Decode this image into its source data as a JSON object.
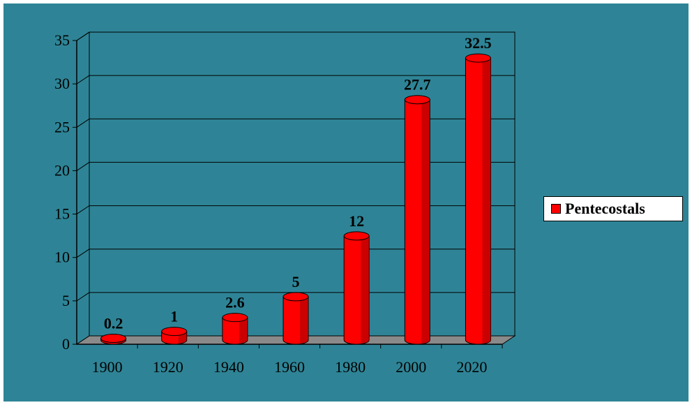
{
  "chart_data": {
    "type": "bar",
    "categories": [
      "1900",
      "1920",
      "1940",
      "1960",
      "1980",
      "2000",
      "2020"
    ],
    "series": [
      {
        "name": "Pentecostals",
        "values": [
          0.2,
          1,
          2.6,
          5,
          12,
          27.7,
          32.5
        ]
      }
    ],
    "data_labels": [
      "0.2",
      "1",
      "2.6",
      "5",
      "12",
      "27.7",
      "32.5"
    ],
    "y_ticks": [
      "0",
      "5",
      "10",
      "15",
      "20",
      "25",
      "30",
      "35"
    ],
    "ylim": [
      0,
      35
    ],
    "title": "",
    "xlabel": "",
    "ylabel": "",
    "grid": true,
    "legend_position": "right",
    "style": "3d-cylinder"
  },
  "colors": {
    "background": "#2e8496",
    "plot_wall": "#2e8496",
    "bar": "#ff0000",
    "bar_dark": "#a00000",
    "gridline": "#000000"
  }
}
